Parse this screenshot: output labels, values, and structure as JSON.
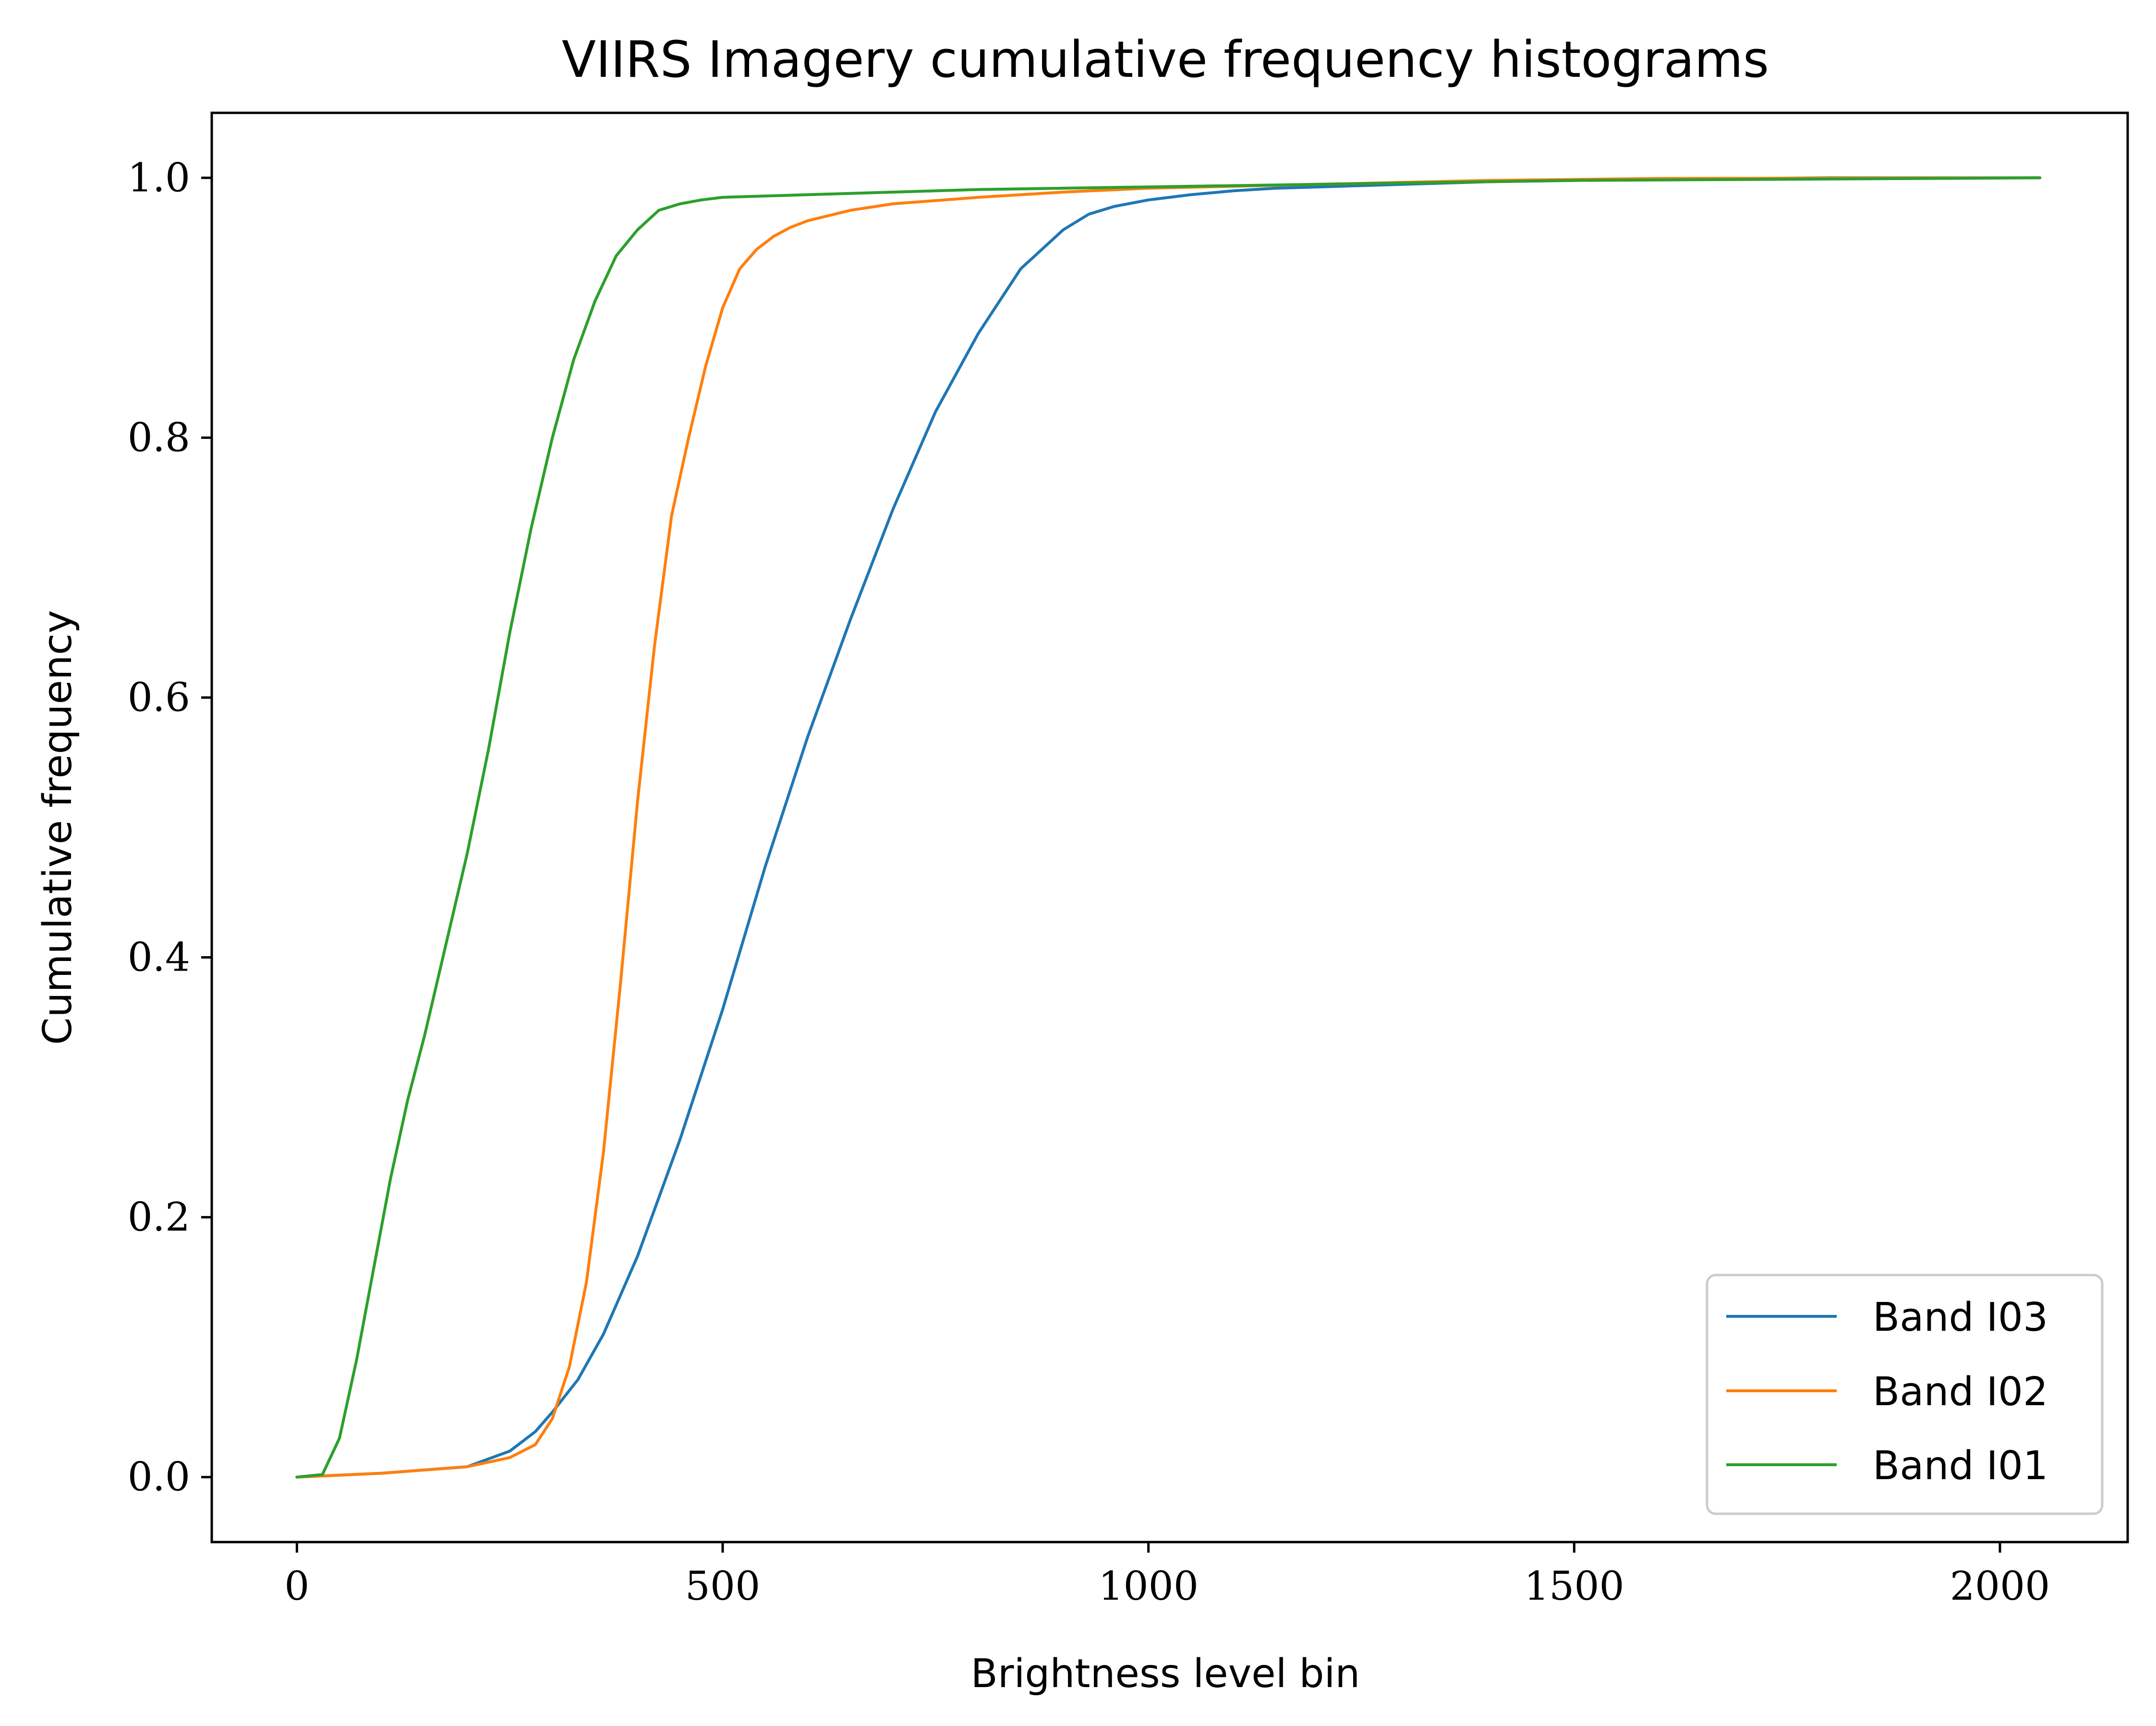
{
  "chart_data": {
    "type": "line",
    "title": "VIIRS Imagery cumulative frequency histograms",
    "xlabel": "Brightness level bin",
    "ylabel": "Cumulative frequency",
    "xlim": [
      -100,
      2150
    ],
    "ylim": [
      -0.05,
      1.05
    ],
    "xticks": [
      0,
      500,
      1000,
      1500,
      2000
    ],
    "xtick_labels": [
      "0",
      "500",
      "1000",
      "1500",
      "2000"
    ],
    "yticks": [
      0.0,
      0.2,
      0.4,
      0.6,
      0.8,
      1.0
    ],
    "ytick_labels": [
      "0.0",
      "0.2",
      "0.4",
      "0.6",
      "0.8",
      "1.0"
    ],
    "grid": false,
    "legend_position": "lower-right",
    "series": [
      {
        "name": "Band I03",
        "color": "#1f77b4",
        "x": [
          0,
          100,
          200,
          250,
          280,
          300,
          330,
          360,
          400,
          450,
          500,
          550,
          600,
          650,
          700,
          750,
          800,
          850,
          900,
          930,
          960,
          1000,
          1050,
          1100,
          1150,
          1200,
          1300,
          1400,
          1500,
          1600,
          1700,
          1800,
          2047
        ],
        "y": [
          0.0,
          0.003,
          0.008,
          0.02,
          0.035,
          0.05,
          0.075,
          0.11,
          0.17,
          0.26,
          0.36,
          0.47,
          0.57,
          0.66,
          0.745,
          0.82,
          0.88,
          0.93,
          0.96,
          0.972,
          0.978,
          0.983,
          0.987,
          0.99,
          0.992,
          0.993,
          0.995,
          0.997,
          0.998,
          0.999,
          0.9995,
          1.0,
          1.0
        ]
      },
      {
        "name": "Band I02",
        "color": "#ff7f0e",
        "x": [
          0,
          100,
          200,
          250,
          280,
          300,
          320,
          340,
          360,
          380,
          400,
          420,
          440,
          460,
          480,
          500,
          520,
          540,
          560,
          580,
          600,
          650,
          700,
          800,
          900,
          1000,
          1200,
          1400,
          1600,
          2047
        ],
        "y": [
          0.0,
          0.003,
          0.008,
          0.015,
          0.025,
          0.045,
          0.085,
          0.15,
          0.25,
          0.38,
          0.52,
          0.64,
          0.74,
          0.8,
          0.855,
          0.9,
          0.93,
          0.945,
          0.955,
          0.962,
          0.967,
          0.975,
          0.98,
          0.985,
          0.989,
          0.992,
          0.995,
          0.998,
          0.9995,
          1.0
        ]
      },
      {
        "name": "Band I01",
        "color": "#2ca02c",
        "x": [
          0,
          30,
          50,
          70,
          90,
          110,
          130,
          150,
          175,
          200,
          225,
          250,
          275,
          300,
          325,
          350,
          375,
          400,
          425,
          450,
          475,
          500,
          550,
          600,
          700,
          800,
          1000,
          1200,
          1500,
          2047
        ],
        "y": [
          0.0,
          0.002,
          0.03,
          0.09,
          0.16,
          0.23,
          0.29,
          0.34,
          0.41,
          0.48,
          0.56,
          0.65,
          0.73,
          0.8,
          0.86,
          0.905,
          0.94,
          0.96,
          0.975,
          0.98,
          0.983,
          0.985,
          0.986,
          0.987,
          0.989,
          0.991,
          0.993,
          0.995,
          0.998,
          1.0
        ]
      }
    ]
  }
}
